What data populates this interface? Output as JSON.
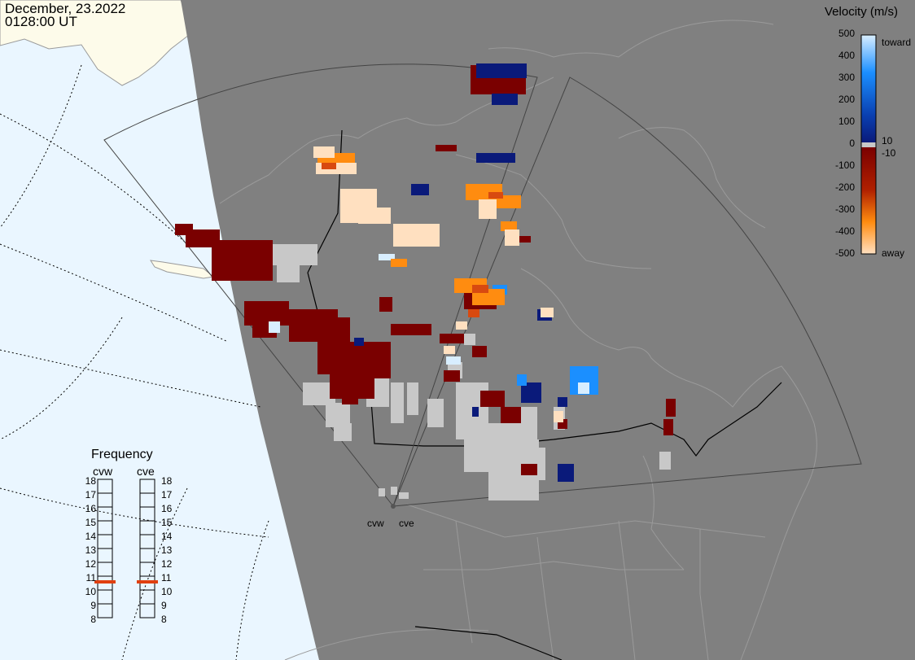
{
  "header": {
    "date": "December, 23.2022",
    "time": "0128:00 UT"
  },
  "colorbar": {
    "title": "Velocity (m/s)",
    "toward_label": "toward",
    "away_label": "away",
    "ticks": [
      "500",
      "400",
      "300",
      "200",
      "100",
      "0",
      "-100",
      "-200",
      "-300",
      "-400",
      "-500"
    ],
    "inner_pos": "10",
    "inner_neg": "-10",
    "colors": {
      "toward_light": "#d8eeff",
      "toward_mid": "#1b8fff",
      "toward_dark": "#0a1a7a",
      "away_dark": "#7a0000",
      "away_mid": "#d84a10",
      "away_orange": "#ff8c10",
      "away_light": "#ffe0c0",
      "ground_scatter": "#c8c8c8"
    }
  },
  "frequency": {
    "title": "Frequency",
    "radars": [
      {
        "code": "cvw",
        "selected_mhz": "10.8"
      },
      {
        "code": "cve",
        "selected_mhz": "10.8"
      }
    ],
    "scale": [
      "18",
      "17",
      "16",
      "15",
      "14",
      "13",
      "12",
      "11",
      "10",
      "9",
      "8"
    ],
    "marker_color": "#e04010"
  },
  "sites": [
    {
      "code": "cvw"
    },
    {
      "code": "cve"
    }
  ],
  "map_colors": {
    "night": "#808080",
    "ocean_day": "#eaf6ff",
    "land_day": "#fdfbea",
    "coast": "#9a9a9a",
    "border": "#000000"
  }
}
